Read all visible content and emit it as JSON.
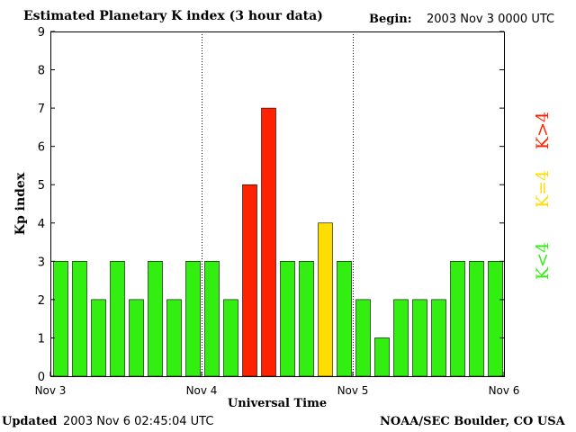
{
  "header": {
    "title": "Estimated Planetary K index (3 hour data)",
    "begin_label": "Begin:",
    "begin_value": "2003 Nov 3 0000 UTC"
  },
  "footer": {
    "updated_label": "Updated",
    "updated_value": "2003 Nov  6 02:45:04 UTC",
    "credit": "NOAA/SEC Boulder, CO USA"
  },
  "legend": [
    {
      "label": "K<4",
      "color": "#33ee11"
    },
    {
      "label": "K=4",
      "color": "#ffdd00"
    },
    {
      "label": "K>4",
      "color": "#ff2200"
    }
  ],
  "chart_data": {
    "type": "bar",
    "title": "Estimated Planetary K index (3 hour data)",
    "xlabel": "Universal Time",
    "ylabel": "Kp index",
    "ylim": [
      0,
      9
    ],
    "yticks": [
      0,
      1,
      2,
      3,
      4,
      5,
      6,
      7,
      8,
      9
    ],
    "xticks": [
      "Nov 3",
      "Nov 4",
      "Nov 5",
      "Nov 6"
    ],
    "bars_per_day": 8,
    "values": [
      3,
      3,
      2,
      3,
      2,
      3,
      2,
      3,
      3,
      2,
      5,
      7,
      3,
      3,
      4,
      3,
      2,
      1,
      2,
      2,
      2,
      3,
      3,
      3
    ],
    "colors": {
      "low": "#33ee11",
      "equal": "#ffdd00",
      "high": "#ff2200"
    }
  }
}
